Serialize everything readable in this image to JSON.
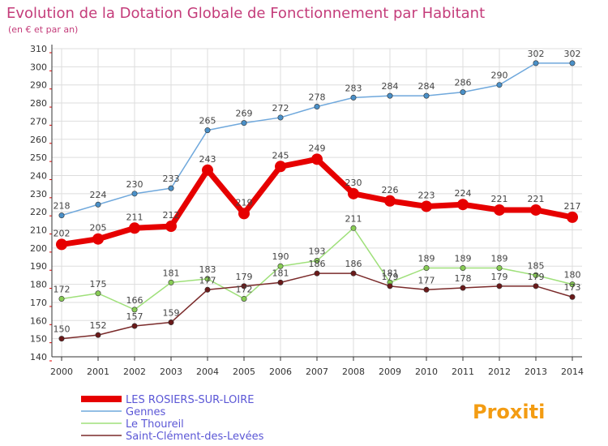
{
  "chart_data": {
    "type": "line",
    "title": "Evolution de la Dotation Globale de Fonctionnement par Habitant",
    "subtitle": "(en € et par an)",
    "xlabel": "",
    "ylabel": "",
    "ylim": [
      140,
      310
    ],
    "yticks": [
      140,
      150,
      160,
      170,
      180,
      190,
      200,
      210,
      220,
      230,
      240,
      250,
      260,
      270,
      280,
      290,
      300,
      310
    ],
    "grid": true,
    "legend_position": "bottom-left",
    "categories": [
      "2000",
      "2001",
      "2002",
      "2003",
      "2004",
      "2005",
      "2006",
      "2007",
      "2008",
      "2009",
      "2010",
      "2011",
      "2012",
      "2013",
      "2014"
    ],
    "series": [
      {
        "name": "LES ROSIERS-SUR-LOIRE",
        "color": "#e60000",
        "marker_color": "#e60000",
        "values": [
          202,
          205,
          211,
          212,
          243,
          219,
          245,
          249,
          230,
          226,
          223,
          224,
          221,
          221,
          217
        ]
      },
      {
        "name": "Gennes",
        "color": "#6fa8dc",
        "marker_color": "#4a90c8",
        "values": [
          218,
          224,
          230,
          233,
          265,
          269,
          272,
          278,
          283,
          284,
          284,
          286,
          290,
          302,
          302
        ]
      },
      {
        "name": "Le Thoureil",
        "color": "#9fe07a",
        "marker_color": "#88cc55",
        "values": [
          172,
          175,
          166,
          181,
          183,
          172,
          190,
          193,
          211,
          181,
          189,
          189,
          189,
          185,
          180
        ]
      },
      {
        "name": "Saint-Clément-des-Levées",
        "color": "#7a2a2a",
        "marker_color": "#6a1a1a",
        "values": [
          150,
          152,
          157,
          159,
          177,
          179,
          181,
          186,
          186,
          179,
          177,
          178,
          179,
          179,
          173
        ]
      }
    ]
  },
  "colors": {
    "title": "#c43c7a",
    "legend_text": "#5b57d6",
    "axis": "#333333",
    "grid": "#dddddd",
    "tick_text": "#333333",
    "value_label": "#444444"
  },
  "logo": {
    "text": "Proxiti"
  }
}
